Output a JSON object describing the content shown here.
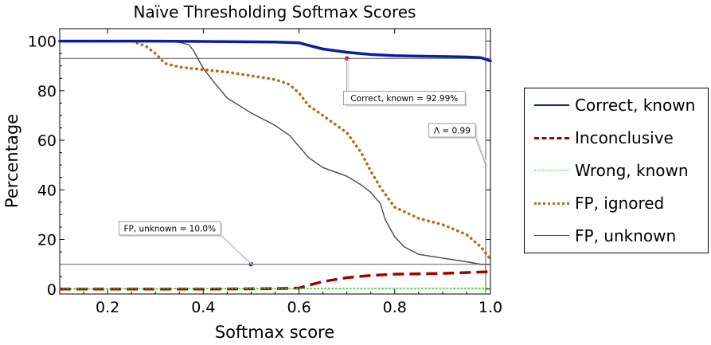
{
  "chart_data": {
    "type": "line",
    "title": "Naïve Thresholding Softmax Scores",
    "xlabel": "Softmax score",
    "ylabel": "Percentage",
    "xlim": [
      0.1,
      1.0
    ],
    "ylim": [
      -2,
      105
    ],
    "x_ticks": [
      0.2,
      0.4,
      0.6,
      0.8,
      1.0
    ],
    "x_tick_labels": [
      "0.2",
      "0.4",
      "0.6",
      "0.8",
      "1.0"
    ],
    "y_ticks": [
      0,
      20,
      40,
      60,
      80,
      100
    ],
    "y_tick_labels": [
      "0",
      "20",
      "40",
      "60",
      "80",
      "100"
    ],
    "legend_position": "right",
    "series": [
      {
        "name": "Correct, known",
        "color": "#0b1ea0",
        "style": "solid-thick",
        "x": [
          0.1,
          0.3,
          0.45,
          0.55,
          0.6,
          0.62,
          0.65,
          0.7,
          0.75,
          0.8,
          0.9,
          0.95,
          0.98,
          1.0
        ],
        "y": [
          100,
          100,
          99.8,
          99.6,
          99.3,
          98.3,
          96.8,
          95.5,
          94.6,
          94.1,
          93.8,
          93.6,
          93.3,
          92.0
        ]
      },
      {
        "name": "Inconclusive",
        "color": "#a00000",
        "style": "dashed",
        "x": [
          0.1,
          0.4,
          0.55,
          0.6,
          0.62,
          0.65,
          0.7,
          0.75,
          0.8,
          0.9,
          1.0
        ],
        "y": [
          0,
          0,
          0.2,
          0.4,
          1.5,
          3.0,
          4.6,
          5.5,
          6.0,
          6.3,
          7.0
        ]
      },
      {
        "name": "Wrong, known",
        "color": "#33cc33",
        "style": "dotted-thin",
        "x": [
          0.1,
          1.0
        ],
        "y": [
          0.1,
          0.3
        ]
      },
      {
        "name": "FP, ignored",
        "color": "#b96a1b",
        "style": "dotted-thick",
        "x": [
          0.1,
          0.25,
          0.28,
          0.3,
          0.32,
          0.35,
          0.4,
          0.45,
          0.5,
          0.55,
          0.58,
          0.6,
          0.62,
          0.65,
          0.7,
          0.73,
          0.75,
          0.77,
          0.8,
          0.85,
          0.9,
          0.95,
          0.98,
          1.0
        ],
        "y": [
          100,
          100,
          98,
          95,
          91,
          89.5,
          88.5,
          87.5,
          86,
          84.5,
          82.5,
          79,
          74,
          70,
          63,
          55,
          47.5,
          41,
          33,
          28.5,
          26,
          22,
          17,
          12
        ]
      },
      {
        "name": "FP, unknown",
        "color": "#4a4a4a",
        "style": "solid-thin",
        "x": [
          0.1,
          0.3,
          0.35,
          0.37,
          0.38,
          0.39,
          0.4,
          0.42,
          0.45,
          0.5,
          0.55,
          0.58,
          0.6,
          0.62,
          0.65,
          0.7,
          0.73,
          0.75,
          0.77,
          0.78,
          0.8,
          0.82,
          0.85,
          0.9,
          0.95,
          0.98,
          1.0
        ],
        "y": [
          100,
          99.8,
          99.5,
          98.5,
          96,
          92.5,
          89,
          84,
          77,
          71,
          66,
          62,
          57.5,
          53,
          49,
          45.5,
          42,
          39,
          34.5,
          28,
          21,
          17,
          14,
          12.5,
          11,
          10,
          10
        ]
      }
    ],
    "reference_lines": [
      {
        "orientation": "horizontal",
        "value": 92.99,
        "color": "#808080"
      },
      {
        "orientation": "horizontal",
        "value": 10.0,
        "color": "#808080"
      },
      {
        "orientation": "vertical",
        "value": 0.99,
        "color": "#808080"
      }
    ],
    "markers": [
      {
        "x": 0.7,
        "y": 92.99,
        "color": "#d02020"
      },
      {
        "x": 0.5,
        "y": 10.0,
        "color": "#2040c0"
      }
    ],
    "annotations": [
      {
        "text": "Correct, known = 92.99%",
        "point_x": 0.7,
        "point_y": 92.99,
        "label_x": 0.82,
        "label_y": 77
      },
      {
        "text": "Λ = 0.99",
        "point_x": 0.99,
        "point_y": 50,
        "label_x": 0.92,
        "label_y": 64
      },
      {
        "text": "FP, unknown = 10.0%",
        "point_x": 0.5,
        "point_y": 10.0,
        "label_x": 0.33,
        "label_y": 24.5
      }
    ]
  }
}
